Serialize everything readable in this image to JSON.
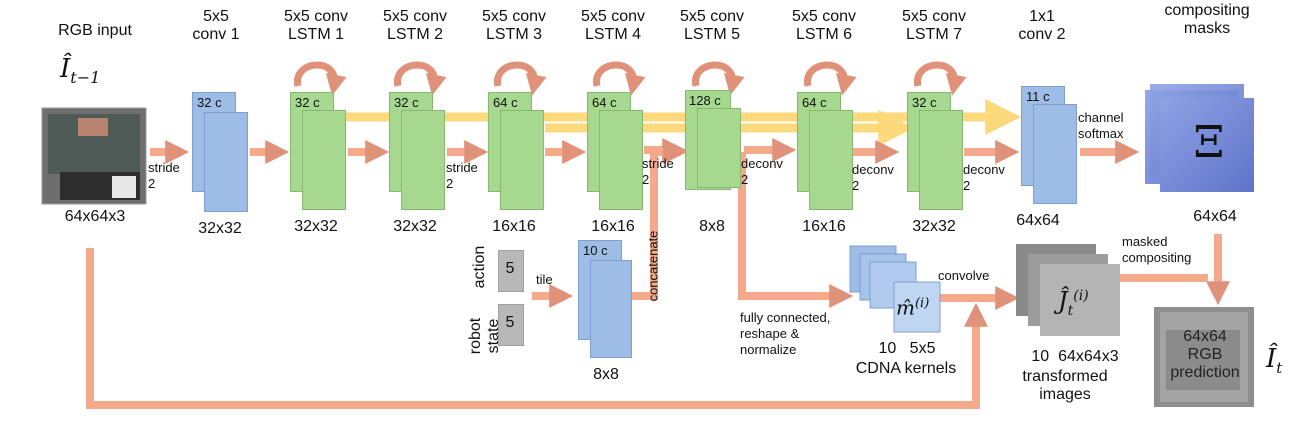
{
  "input": {
    "label": "RGB input",
    "symbol": "Î",
    "symbol_sub": "t−1",
    "size": "64x64x3"
  },
  "layers": [
    {
      "title_line1": "5x5",
      "title_line2": "conv 1",
      "channels": "32 c",
      "size": "32x32"
    },
    {
      "title_line1": "5x5 conv",
      "title_line2": "LSTM 1",
      "channels": "32 c",
      "size": "32x32"
    },
    {
      "title_line1": "5x5 conv",
      "title_line2": "LSTM 2",
      "channels": "32 c",
      "size": "32x32"
    },
    {
      "title_line1": "5x5 conv",
      "title_line2": "LSTM 3",
      "channels": "64 c",
      "size": "16x16"
    },
    {
      "title_line1": "5x5 conv",
      "title_line2": "LSTM 4",
      "channels": "64 c",
      "size": "16x16"
    },
    {
      "title_line1": "5x5 conv",
      "title_line2": "LSTM 5",
      "channels": "128 c",
      "size": "8x8"
    },
    {
      "title_line1": "5x5 conv",
      "title_line2": "LSTM 6",
      "channels": "64 c",
      "size": "16x16"
    },
    {
      "title_line1": "5x5 conv",
      "title_line2": "LSTM 7",
      "channels": "32 c",
      "size": "32x32"
    },
    {
      "title_line1": "1x1",
      "title_line2": "conv 2",
      "channels": "11 c",
      "size": "64x64"
    }
  ],
  "edge_labels": {
    "stride": "stride",
    "two": "2",
    "deconv": "deconv",
    "channel": "channel",
    "softmax": "softmax",
    "tile": "tile",
    "concatenate": "concatenate",
    "convolve": "convolve",
    "masked": "masked",
    "compositing": "compositing",
    "fc1": "fully connected,",
    "fc2": "reshape &",
    "fc3": "normalize"
  },
  "robot": {
    "action_label": "action",
    "state_label1": "robot",
    "state_label2": "state",
    "action_value": "5",
    "state_value": "5",
    "concat_channels": "10 c",
    "concat_size": "8x8"
  },
  "masks": {
    "title_line1": "compositing",
    "title_line2": "masks",
    "symbol": "Ξ",
    "size": "64x64"
  },
  "cdna": {
    "symbol": "m̂",
    "superscript": "(i)",
    "count": "10",
    "kernel_size": "5x5",
    "label": "CDNA kernels"
  },
  "transformed": {
    "symbol": "Ĵ",
    "subscript": "t",
    "superscript": "(i)",
    "count": "10",
    "size": "64x64x3",
    "label1": "transformed",
    "label2": "images"
  },
  "prediction": {
    "line1": "64x64",
    "line2": "RGB",
    "line3": "prediction",
    "symbol": "Î",
    "symbol_sub": "t"
  },
  "colors": {
    "conv_blue": "#9dbde6",
    "lstm_green": "#a6d88f",
    "arrow_orange": "#f4a98a",
    "skip_yellow": "#fcd97a",
    "recurrent_arrow": "#e0917a",
    "mask_blue": "#6d7fd0"
  }
}
